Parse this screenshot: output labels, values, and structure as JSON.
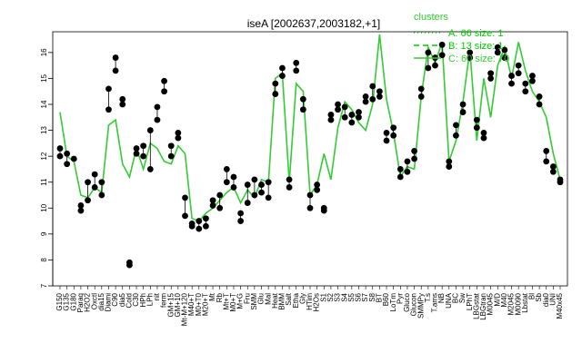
{
  "chart_data": {
    "type": "line",
    "title": "iseA [2002637,2003182,+1]",
    "xlabel": "",
    "ylabel": "",
    "ylim": [
      7,
      16.8
    ],
    "yticks": [
      7,
      8,
      9,
      10,
      11,
      12,
      13,
      14,
      15,
      16
    ],
    "grid": false,
    "legend_placement": "top-right",
    "x_tick_labels": [
      "G150",
      "G135",
      "G180",
      "Paraq",
      "H2O2",
      "Oxctl",
      "dia15",
      "Diami",
      "C90",
      "dia5",
      "Cold",
      "C30",
      "HPh",
      "LPh",
      "nit",
      "ferm",
      "GM+15",
      "GM+10",
      "Mt-M+120",
      "M40+T",
      "M0+T0",
      "M20+T",
      "Mt",
      "Rb",
      "Mt+T",
      "M0+T",
      "M+G",
      "Fru",
      "SMM",
      "Glu",
      "Mal",
      "Heat",
      "BMM",
      "Salt",
      "Etha",
      "Gly",
      "HTim",
      "H2Os",
      "S1",
      "S2",
      "S3",
      "S4",
      "S5",
      "S6",
      "S7",
      "S8",
      "BT",
      "B60",
      "LoTm",
      "Pyr",
      "Gluco",
      "Glucon",
      "SMMPy",
      "T.s",
      "T.ams",
      "NB",
      "UNA",
      "BC",
      "Sw",
      "LPhT",
      "LBGstat",
      "LBGtran",
      "M0045",
      "M/D",
      "M40",
      "M2045",
      "M0090",
      "Lbstat",
      "Bl",
      "Sb",
      "dia0",
      "UNI",
      "M40x45"
    ],
    "series": [
      {
        "name": "A: 66 size: 1",
        "style": "dotted",
        "color": "#00cc00",
        "values": []
      },
      {
        "name": "B: 13 size: 1",
        "style": "dashed",
        "color": "#00cc00",
        "values": []
      },
      {
        "name": "C: 60 size: 70",
        "style": "solid",
        "color": "#33cc33",
        "values": [
          13.7,
          12.0,
          11.8,
          10.5,
          10.4,
          10.8,
          10.6,
          13.2,
          13.4,
          11.7,
          11.2,
          12.3,
          11.5,
          12.5,
          12.3,
          11.8,
          11.7,
          12.4,
          12.1,
          9.6,
          9.5,
          9.8,
          10.0,
          10.3,
          10.6,
          10.8,
          10.2,
          10.7,
          10.4,
          11.1,
          11.0,
          15.0,
          15.2,
          11.0,
          14.8,
          14.5,
          10.5,
          10.9,
          12.1,
          11.1,
          13.1,
          14.1,
          13.8,
          13.3,
          13.0,
          14.0,
          16.7,
          14.2,
          12.9,
          11.2,
          11.6,
          11.5,
          14.3,
          16.2,
          15.6,
          16.4,
          11.8,
          12.6,
          14.1,
          16.1,
          12.6,
          15.0,
          13.5,
          15.5,
          16.2,
          15.0,
          16.4,
          15.3,
          14.5,
          14.1,
          13.5,
          12.1,
          11.1
        ]
      }
    ],
    "points": [
      {
        "x": 0,
        "y": 12.3
      },
      {
        "x": 0,
        "y": 12.0
      },
      {
        "x": 1,
        "y": 12.1
      },
      {
        "x": 1,
        "y": 11.7
      },
      {
        "x": 2,
        "y": 11.9
      },
      {
        "x": 3,
        "y": 9.9
      },
      {
        "x": 3,
        "y": 10.1
      },
      {
        "x": 4,
        "y": 10.3
      },
      {
        "x": 4,
        "y": 11.0
      },
      {
        "x": 5,
        "y": 11.3
      },
      {
        "x": 5,
        "y": 10.8
      },
      {
        "x": 6,
        "y": 10.5
      },
      {
        "x": 6,
        "y": 11.0
      },
      {
        "x": 7,
        "y": 13.8
      },
      {
        "x": 7,
        "y": 14.6
      },
      {
        "x": 8,
        "y": 15.3
      },
      {
        "x": 8,
        "y": 15.8
      },
      {
        "x": 9,
        "y": 14.2
      },
      {
        "x": 9,
        "y": 14.0
      },
      {
        "x": 10,
        "y": 7.9
      },
      {
        "x": 10,
        "y": 7.8
      },
      {
        "x": 11,
        "y": 12.3
      },
      {
        "x": 11,
        "y": 12.1
      },
      {
        "x": 12,
        "y": 12.4
      },
      {
        "x": 12,
        "y": 12.0
      },
      {
        "x": 13,
        "y": 13.0
      },
      {
        "x": 13,
        "y": 11.5
      },
      {
        "x": 14,
        "y": 13.9
      },
      {
        "x": 14,
        "y": 13.4
      },
      {
        "x": 15,
        "y": 14.5
      },
      {
        "x": 15,
        "y": 14.9
      },
      {
        "x": 16,
        "y": 12.4
      },
      {
        "x": 16,
        "y": 12.0
      },
      {
        "x": 17,
        "y": 12.9
      },
      {
        "x": 17,
        "y": 12.7
      },
      {
        "x": 18,
        "y": 10.4
      },
      {
        "x": 18,
        "y": 9.7
      },
      {
        "x": 19,
        "y": 9.4
      },
      {
        "x": 19,
        "y": 9.3
      },
      {
        "x": 20,
        "y": 9.2
      },
      {
        "x": 20,
        "y": 9.5
      },
      {
        "x": 21,
        "y": 9.3
      },
      {
        "x": 21,
        "y": 9.6
      },
      {
        "x": 22,
        "y": 10.1
      },
      {
        "x": 22,
        "y": 10.3
      },
      {
        "x": 23,
        "y": 10.5
      },
      {
        "x": 23,
        "y": 10.0
      },
      {
        "x": 24,
        "y": 11.0
      },
      {
        "x": 24,
        "y": 11.5
      },
      {
        "x": 25,
        "y": 10.8
      },
      {
        "x": 25,
        "y": 11.2
      },
      {
        "x": 26,
        "y": 9.8
      },
      {
        "x": 26,
        "y": 9.5
      },
      {
        "x": 27,
        "y": 10.2
      },
      {
        "x": 27,
        "y": 10.9
      },
      {
        "x": 28,
        "y": 10.5
      },
      {
        "x": 28,
        "y": 11.1
      },
      {
        "x": 29,
        "y": 10.6
      },
      {
        "x": 29,
        "y": 10.9
      },
      {
        "x": 30,
        "y": 10.4
      },
      {
        "x": 30,
        "y": 11.0
      },
      {
        "x": 31,
        "y": 14.8
      },
      {
        "x": 31,
        "y": 14.4
      },
      {
        "x": 32,
        "y": 15.1
      },
      {
        "x": 32,
        "y": 15.4
      },
      {
        "x": 33,
        "y": 11.1
      },
      {
        "x": 33,
        "y": 10.8
      },
      {
        "x": 34,
        "y": 15.3
      },
      {
        "x": 34,
        "y": 15.6
      },
      {
        "x": 35,
        "y": 14.2
      },
      {
        "x": 35,
        "y": 13.8
      },
      {
        "x": 36,
        "y": 10.5
      },
      {
        "x": 36,
        "y": 10.0
      },
      {
        "x": 37,
        "y": 10.9
      },
      {
        "x": 37,
        "y": 10.7
      },
      {
        "x": 38,
        "y": 10.0
      },
      {
        "x": 38,
        "y": 9.9
      },
      {
        "x": 39,
        "y": 13.6
      },
      {
        "x": 39,
        "y": 13.4
      },
      {
        "x": 40,
        "y": 14.0
      },
      {
        "x": 40,
        "y": 13.8
      },
      {
        "x": 41,
        "y": 13.9
      },
      {
        "x": 41,
        "y": 13.5
      },
      {
        "x": 42,
        "y": 13.3
      },
      {
        "x": 42,
        "y": 13.6
      },
      {
        "x": 43,
        "y": 13.5
      },
      {
        "x": 43,
        "y": 13.7
      },
      {
        "x": 44,
        "y": 14.3
      },
      {
        "x": 44,
        "y": 14.1
      },
      {
        "x": 45,
        "y": 14.7
      },
      {
        "x": 45,
        "y": 14.2
      },
      {
        "x": 46,
        "y": 14.5
      },
      {
        "x": 46,
        "y": 14.3
      },
      {
        "x": 47,
        "y": 12.9
      },
      {
        "x": 47,
        "y": 12.6
      },
      {
        "x": 48,
        "y": 13.1
      },
      {
        "x": 48,
        "y": 12.8
      },
      {
        "x": 49,
        "y": 11.5
      },
      {
        "x": 49,
        "y": 11.2
      },
      {
        "x": 50,
        "y": 11.8
      },
      {
        "x": 50,
        "y": 11.4
      },
      {
        "x": 51,
        "y": 12.2
      },
      {
        "x": 51,
        "y": 11.9
      },
      {
        "x": 52,
        "y": 14.6
      },
      {
        "x": 52,
        "y": 14.3
      },
      {
        "x": 53,
        "y": 16.0
      },
      {
        "x": 53,
        "y": 15.4
      },
      {
        "x": 54,
        "y": 15.8
      },
      {
        "x": 54,
        "y": 15.5
      },
      {
        "x": 55,
        "y": 16.3
      },
      {
        "x": 55,
        "y": 15.9
      },
      {
        "x": 56,
        "y": 11.8
      },
      {
        "x": 56,
        "y": 11.6
      },
      {
        "x": 57,
        "y": 12.8
      },
      {
        "x": 57,
        "y": 13.2
      },
      {
        "x": 58,
        "y": 14.0
      },
      {
        "x": 58,
        "y": 13.7
      },
      {
        "x": 59,
        "y": 16.0
      },
      {
        "x": 59,
        "y": 15.8
      },
      {
        "x": 60,
        "y": 13.4
      },
      {
        "x": 60,
        "y": 13.1
      },
      {
        "x": 61,
        "y": 12.9
      },
      {
        "x": 61,
        "y": 12.7
      },
      {
        "x": 62,
        "y": 15.2
      },
      {
        "x": 62,
        "y": 15.0
      },
      {
        "x": 63,
        "y": 16.2
      },
      {
        "x": 63,
        "y": 16.0
      },
      {
        "x": 64,
        "y": 16.1
      },
      {
        "x": 64,
        "y": 15.8
      },
      {
        "x": 65,
        "y": 15.1
      },
      {
        "x": 65,
        "y": 14.8
      },
      {
        "x": 66,
        "y": 15.5
      },
      {
        "x": 66,
        "y": 15.2
      },
      {
        "x": 67,
        "y": 14.8
      },
      {
        "x": 67,
        "y": 14.5
      },
      {
        "x": 68,
        "y": 15.1
      },
      {
        "x": 68,
        "y": 14.9
      },
      {
        "x": 69,
        "y": 14.3
      },
      {
        "x": 69,
        "y": 14.0
      },
      {
        "x": 70,
        "y": 12.2
      },
      {
        "x": 70,
        "y": 11.8
      },
      {
        "x": 71,
        "y": 11.6
      },
      {
        "x": 71,
        "y": 11.4
      },
      {
        "x": 72,
        "y": 11.1
      },
      {
        "x": 72,
        "y": 11.0
      }
    ]
  }
}
